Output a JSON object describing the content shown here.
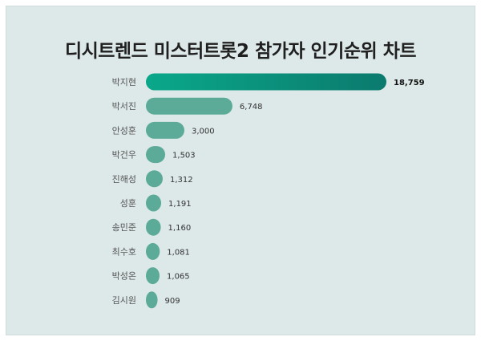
{
  "title": "디시트렌드 미스터트롯2 참가자 인기순위 차트",
  "colors": {
    "background": "#dde8e8",
    "top_bar_start": "#0aa88a",
    "top_bar_end": "#0b7a6e",
    "bar": "#5bab98"
  },
  "chart_data": {
    "type": "bar",
    "orientation": "horizontal",
    "categories": [
      "박지현",
      "박서진",
      "안성훈",
      "박건우",
      "진해성",
      "성훈",
      "송민준",
      "최수호",
      "박성온",
      "김시원"
    ],
    "values": [
      18759,
      6748,
      3000,
      1503,
      1312,
      1191,
      1160,
      1081,
      1065,
      909
    ],
    "value_labels": [
      "18,759",
      "6,748",
      "3,000",
      "1,503",
      "1,312",
      "1,191",
      "1,160",
      "1,081",
      "1,065",
      "909"
    ],
    "title": "디시트렌드 미스터트롯2 참가자 인기순위 차트",
    "xlabel": "",
    "ylabel": "",
    "grid": false,
    "legend": "none"
  }
}
